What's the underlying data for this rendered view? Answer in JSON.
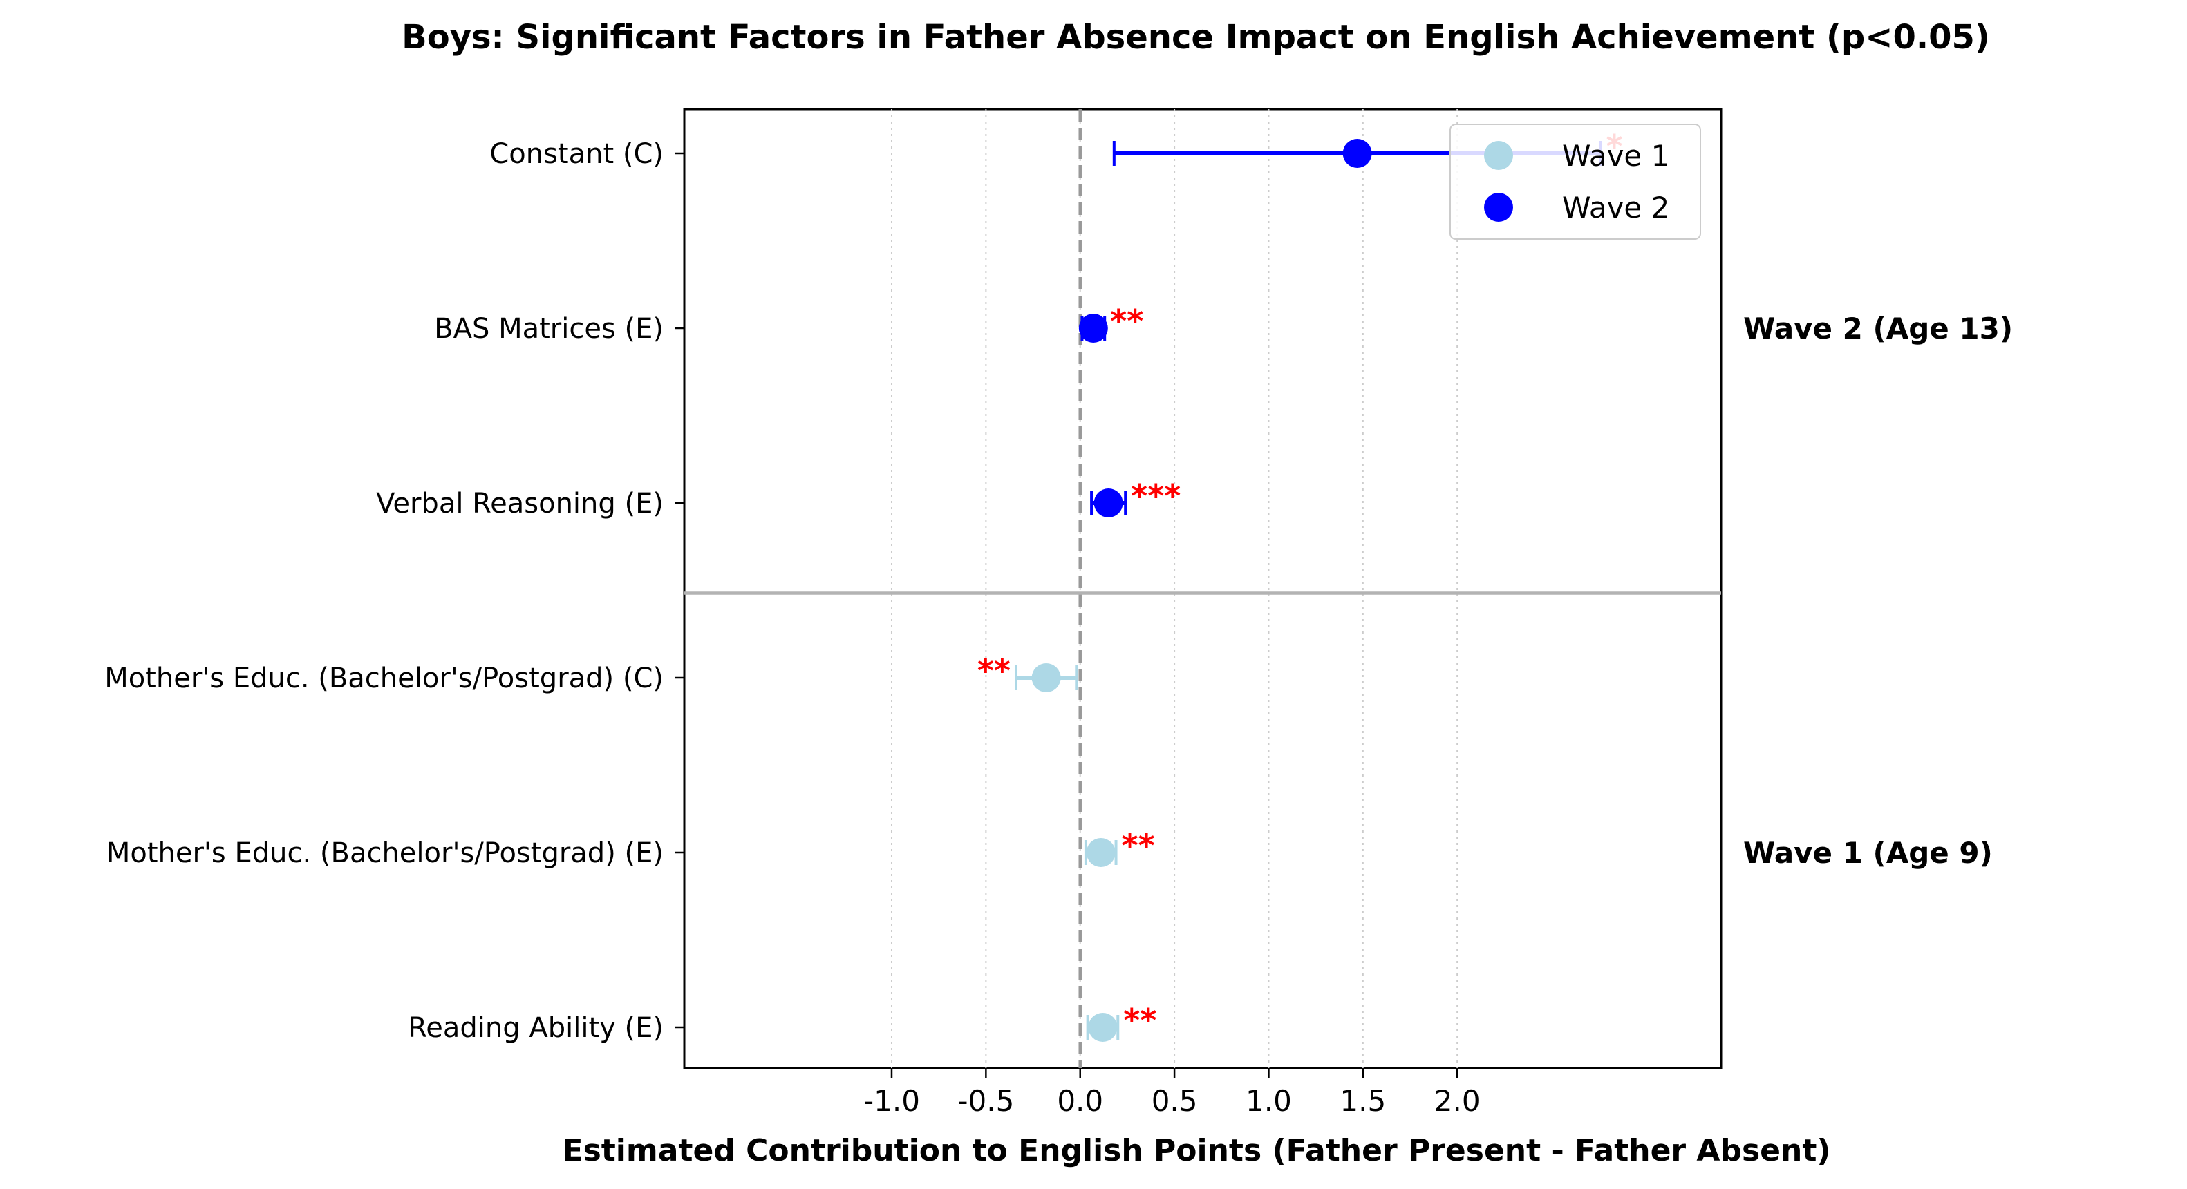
{
  "chart_data": {
    "type": "scatter",
    "title": "Boys: Significant Factors in Father Absence Impact on English Achievement (p<0.05)",
    "xlabel": "Estimated Contribution to English Points (Father Present - Father Absent)",
    "xlim": [
      -2.1,
      3.4
    ],
    "x_ticks": [
      -1.0,
      -0.5,
      0.0,
      0.5,
      1.0,
      1.5,
      2.0
    ],
    "x_tick_labels": [
      "-1.0",
      "-0.5",
      "0.0",
      "0.5",
      "1.0",
      "1.5",
      "2.0"
    ],
    "grid": "vertical dotted",
    "reference_line_x": 0.0,
    "legend_position": "top-right",
    "categories": [
      "Constant (C)",
      "BAS Matrices (E)",
      "Verbal Reasoning (E)",
      "Mother's Educ. (Bachelor's/Postgrad) (C)",
      "Mother's Educ. (Bachelor's/Postgrad) (E)",
      "Reading Ability (E)"
    ],
    "groups": [
      {
        "label": "Wave 2 (Age 13)",
        "series": "Wave 2",
        "categories": [
          0,
          1,
          2
        ]
      },
      {
        "label": "Wave 1 (Age 9)",
        "series": "Wave 1",
        "categories": [
          3,
          4,
          5
        ]
      }
    ],
    "series": [
      {
        "name": "Wave 1",
        "color": "#add8e6",
        "points": [
          {
            "category": 3,
            "value": -0.18,
            "ci": [
              -0.34,
              -0.02
            ],
            "sig": "**"
          },
          {
            "category": 4,
            "value": 0.11,
            "ci": [
              0.03,
              0.19
            ],
            "sig": "**"
          },
          {
            "category": 5,
            "value": 0.12,
            "ci": [
              0.04,
              0.2
            ],
            "sig": "**"
          }
        ]
      },
      {
        "name": "Wave 2",
        "color": "#0000ff",
        "points": [
          {
            "category": 0,
            "value": 1.47,
            "ci": [
              0.18,
              2.76
            ],
            "sig": "*"
          },
          {
            "category": 1,
            "value": 0.07,
            "ci": [
              0.01,
              0.13
            ],
            "sig": "**"
          },
          {
            "category": 2,
            "value": 0.15,
            "ci": [
              0.06,
              0.24
            ],
            "sig": "***"
          }
        ]
      }
    ]
  }
}
